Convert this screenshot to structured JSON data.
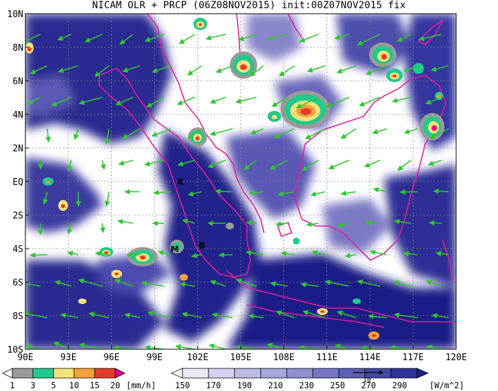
{
  "title": "NICAM OLR + PRCP (06Z08NOV2015) init:00Z07NOV2015 fix",
  "map": {
    "lon_range": [
      90,
      120
    ],
    "lat_range": [
      -10,
      10
    ],
    "x_ticks": [
      "90E",
      "93E",
      "96E",
      "99E",
      "102E",
      "105E",
      "108E",
      "111E",
      "114E",
      "117E",
      "120E"
    ],
    "y_ticks": [
      "10N",
      "8N",
      "6N",
      "4N",
      "2N",
      "EQ",
      "2S",
      "4S",
      "6S",
      "8S",
      "10S"
    ],
    "colors": {
      "olr_dark": "#1c1c86",
      "olr_mid": "#5a58b4",
      "olr_light": "#b8b6e2",
      "coast": "#e0209a",
      "wind": "#2ec82e",
      "grid": "#8c8c8c"
    },
    "station_labels": [
      {
        "text": "K",
        "lon": 100.8,
        "lat": 0.0
      },
      {
        "text": "M",
        "lon": 100.4,
        "lat": -4.0
      },
      {
        "text": "B",
        "lon": 102.3,
        "lat": -3.8
      }
    ],
    "vector_reference": {
      "text": "10"
    }
  },
  "precip_colorbar": {
    "labels": [
      "1",
      "3",
      "5",
      "10",
      "15",
      "20"
    ],
    "unit": "[mm/h]",
    "colors": [
      "#ffffff",
      "#9a9a9a",
      "#1ecb8c",
      "#f5e27a",
      "#f5a03a",
      "#e83a2a",
      "#e6008c"
    ]
  },
  "olr_colorbar": {
    "labels": [
      "150",
      "170",
      "190",
      "210",
      "230",
      "250",
      "270",
      "290"
    ],
    "unit": "[W/m^2]",
    "colors": [
      "#ffffff",
      "#e8e8f6",
      "#d2d2ee",
      "#bcbce4",
      "#a6a6da",
      "#8e8ed0",
      "#7676c4",
      "#5e5eb6",
      "#4646a6",
      "#303096",
      "#1e1e86"
    ]
  }
}
